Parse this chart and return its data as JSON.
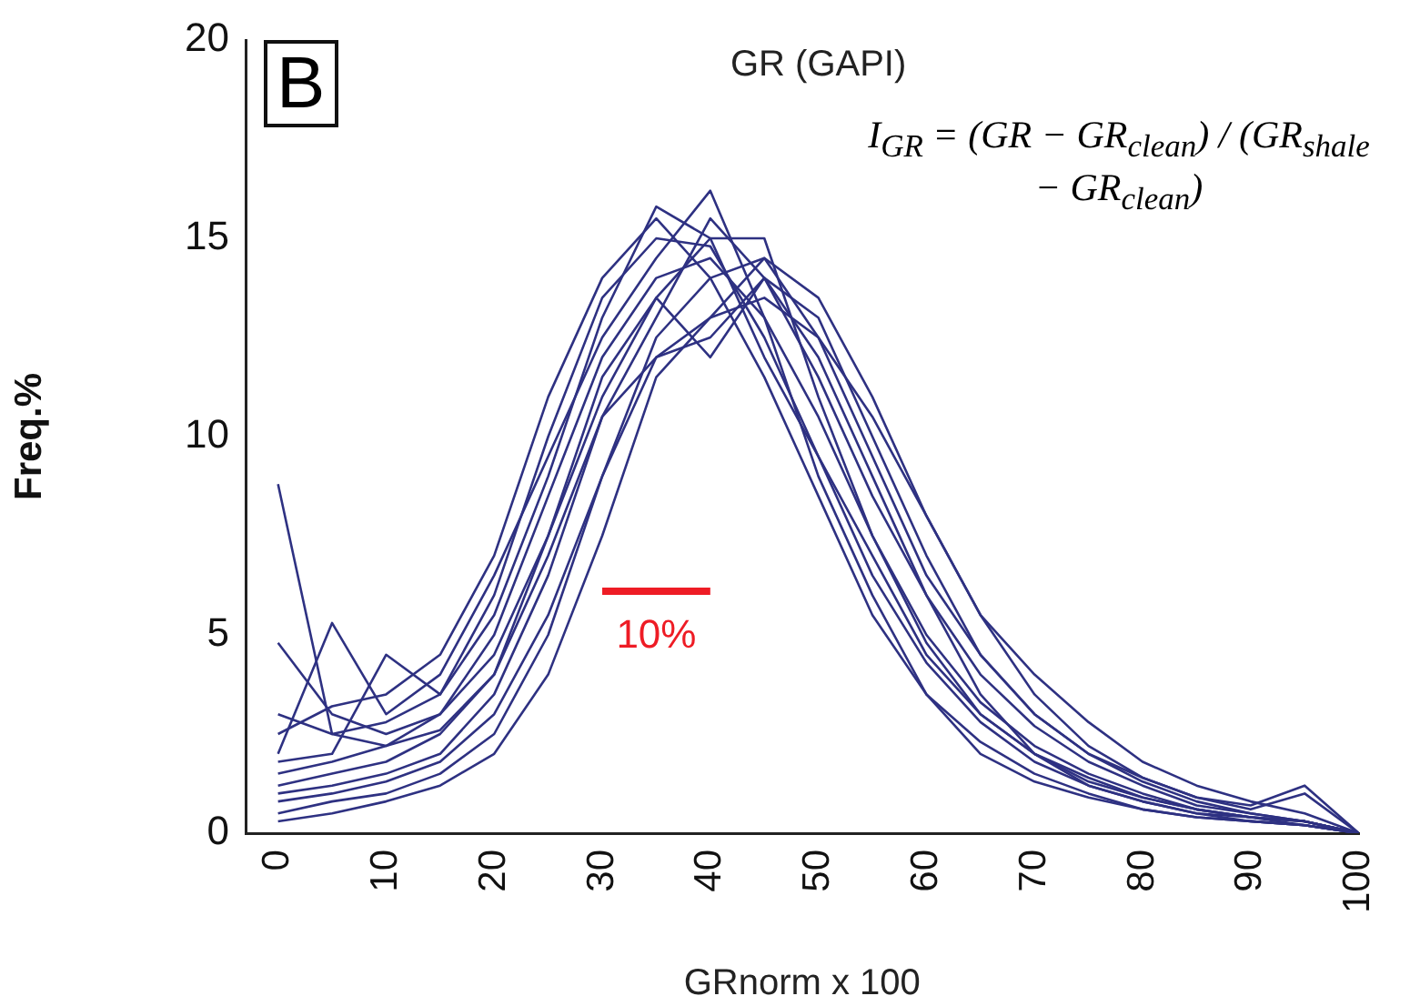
{
  "chart_data": {
    "type": "line",
    "title": "GR (GAPI)",
    "xlabel": "GRnorm x 100",
    "ylabel": "Freq.%",
    "x": [
      0,
      5,
      10,
      15,
      20,
      25,
      30,
      35,
      40,
      45,
      50,
      55,
      60,
      65,
      70,
      75,
      80,
      85,
      90,
      95,
      100
    ],
    "xlim": [
      -3,
      100
    ],
    "xticks": [
      0,
      10,
      20,
      30,
      40,
      50,
      60,
      70,
      80,
      90,
      100
    ],
    "ylim": [
      0,
      20
    ],
    "yticks": [
      0,
      5,
      10,
      15,
      20
    ],
    "grid": false,
    "legend": false,
    "marker": "none",
    "line_style": "solid",
    "annotations": [
      "B",
      "I$_{GR}$ = (GR − GR$_{clean}$) / (GR$_{shale}$ − GR$_{clean}$)",
      {
        "text": "10%",
        "x": 35,
        "y": 6.1
      }
    ],
    "series": [
      {
        "color": "#2e3182",
        "values": [
          1.5,
          1.8,
          2.2,
          3,
          5,
          8.5,
          12,
          14,
          14.5,
          13,
          10.5,
          7.5,
          5,
          3.3,
          2.2,
          1.5,
          1,
          0.6,
          0.4,
          0.3,
          0
        ]
      },
      {
        "color": "#2e3182",
        "values": [
          8.8,
          2.5,
          2.8,
          3.5,
          6,
          10,
          13.5,
          15,
          14.8,
          12.5,
          9.5,
          6.5,
          4.3,
          2.8,
          1.8,
          1.2,
          0.8,
          0.5,
          0.3,
          0.2,
          0
        ]
      },
      {
        "color": "#2e3182",
        "values": [
          0.5,
          0.8,
          1,
          1.5,
          2.5,
          5,
          9,
          12.5,
          14,
          14.5,
          12.5,
          9.5,
          6.5,
          4.5,
          3,
          2,
          1.3,
          0.8,
          0.5,
          0.3,
          0
        ]
      },
      {
        "color": "#2e3182",
        "values": [
          2.5,
          3.2,
          3.5,
          4.5,
          7,
          11,
          14,
          15.5,
          14,
          11.5,
          8.5,
          5.5,
          3.5,
          2.3,
          1.5,
          1,
          0.6,
          0.4,
          0.3,
          0.2,
          0
        ]
      },
      {
        "color": "#2e3182",
        "values": [
          1,
          1.2,
          1.5,
          2,
          3.5,
          6.5,
          10.5,
          13,
          15.5,
          14,
          11.5,
          8.5,
          6,
          4,
          2.7,
          1.8,
          1.2,
          0.7,
          0.5,
          0.3,
          0
        ]
      },
      {
        "color": "#2e3182",
        "values": [
          4.8,
          3,
          2.5,
          3,
          4.5,
          7.5,
          11.5,
          13.5,
          12,
          14,
          12,
          9,
          6,
          3.5,
          2,
          1.2,
          0.8,
          0.5,
          0.4,
          0.2,
          0
        ]
      },
      {
        "color": "#2e3182",
        "values": [
          0.3,
          0.5,
          0.8,
          1.2,
          2,
          4,
          7.5,
          11.5,
          13,
          14.5,
          13.5,
          11,
          8,
          5.5,
          3.5,
          2.2,
          1.4,
          0.9,
          0.6,
          1,
          0
        ]
      },
      {
        "color": "#2e3182",
        "values": [
          2,
          5.3,
          3,
          4,
          6.5,
          9.5,
          12.5,
          14.5,
          16.2,
          13,
          9,
          6,
          3.5,
          2,
          1.3,
          0.9,
          0.6,
          0.4,
          0.3,
          0.2,
          0
        ]
      },
      {
        "color": "#2e3182",
        "values": [
          1.8,
          2,
          4.5,
          3.5,
          5.5,
          9,
          13,
          15.8,
          15,
          12,
          9.5,
          7,
          4.5,
          3,
          2,
          1.4,
          0.9,
          0.6,
          0.4,
          0.3,
          0
        ]
      },
      {
        "color": "#2e3182",
        "values": [
          0.8,
          1,
          1.3,
          1.8,
          3,
          5.5,
          9,
          12,
          12.5,
          14,
          13,
          10,
          7,
          4.5,
          3,
          2,
          1.4,
          0.9,
          0.7,
          1.2,
          0
        ]
      },
      {
        "color": "#2e3182",
        "values": [
          3,
          2.5,
          2.2,
          2.6,
          4,
          7,
          10.5,
          12,
          13,
          13.5,
          12.5,
          10.5,
          8,
          5.5,
          4,
          2.8,
          1.8,
          1.2,
          0.8,
          0.5,
          0
        ]
      },
      {
        "color": "#2e3182",
        "values": [
          1.2,
          1.5,
          1.8,
          2.5,
          4,
          7.5,
          11,
          13.5,
          15,
          15,
          11,
          7.5,
          4.8,
          3,
          2,
          1.3,
          0.9,
          0.6,
          0.4,
          0.3,
          0
        ]
      },
      {
        "color": "#ee1c25",
        "x": [
          30,
          40
        ],
        "values": [
          6.1,
          6.1
        ]
      }
    ]
  }
}
